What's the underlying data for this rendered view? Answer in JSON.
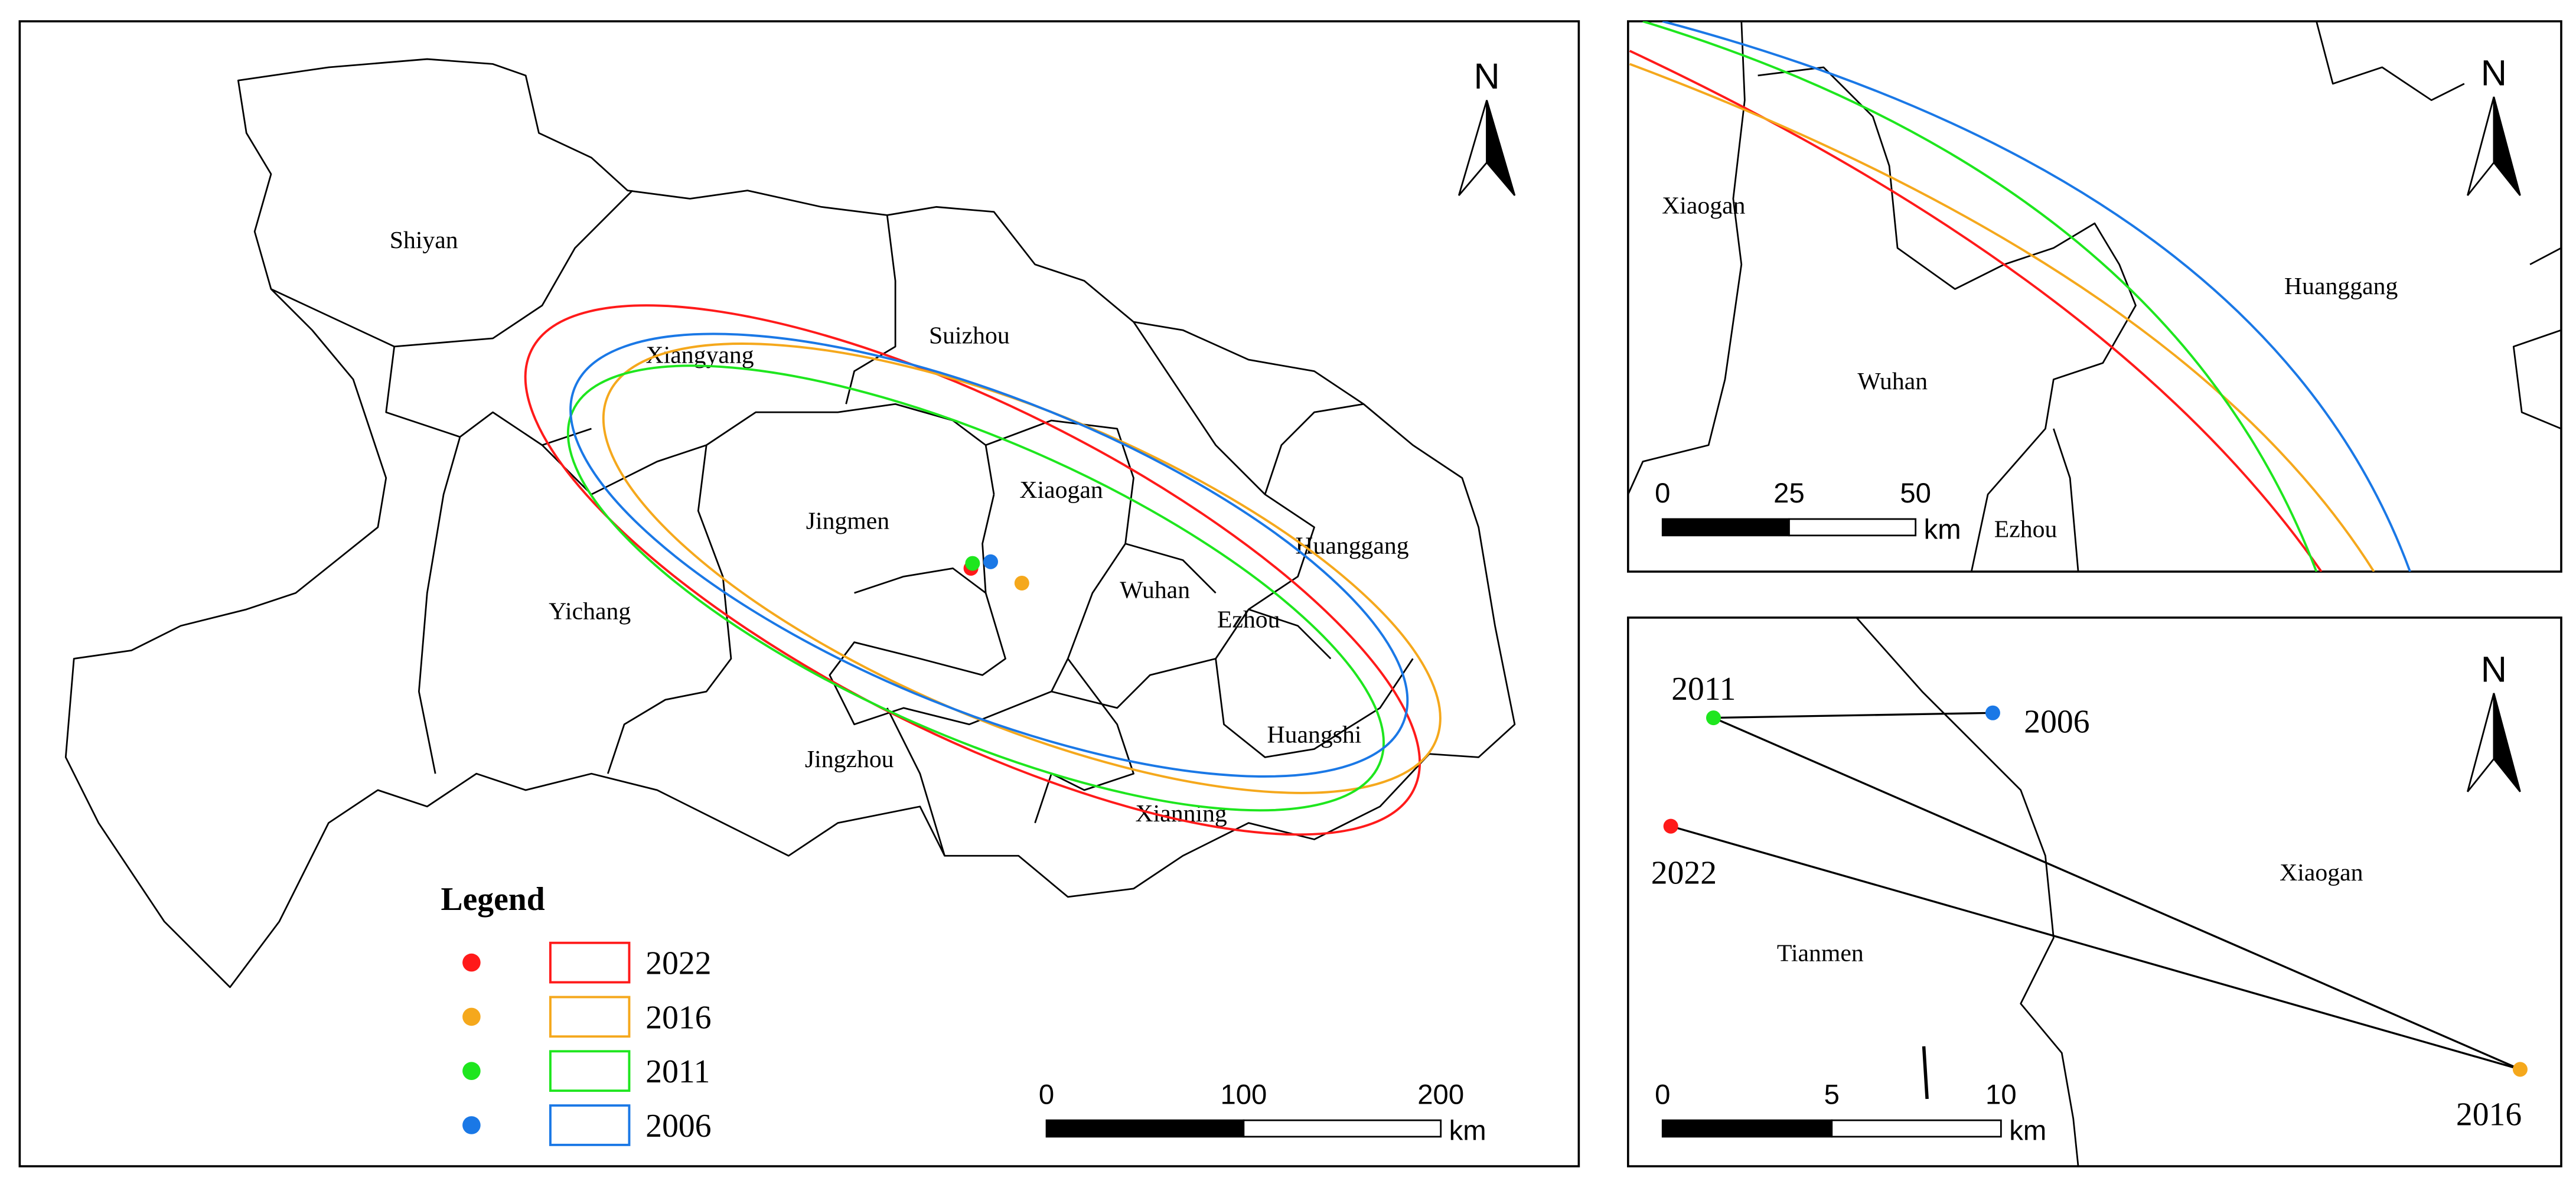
{
  "main_map": {
    "north": "N",
    "regions": [
      "Shiyan",
      "Xiangyang",
      "Suizhou",
      "Xiaogan",
      "Jingmen",
      "Wuhan",
      "Huanggang",
      "Ezhou",
      "Yichang",
      "Huangshi",
      "Jingzhou",
      "Xianning"
    ],
    "legend": {
      "title": "Legend",
      "years": [
        {
          "name": "2022",
          "color": "#ff1a1a"
        },
        {
          "name": "2016",
          "color": "#f5a81c"
        },
        {
          "name": "2011",
          "color": "#1ee61e"
        },
        {
          "name": "2006",
          "color": "#1a78e6"
        }
      ]
    },
    "scale_bar": {
      "ticks": [
        0,
        100,
        200
      ],
      "unit": "km"
    }
  },
  "inset_top": {
    "north": "N",
    "regions": [
      "Xiaogan",
      "Wuhan",
      "Huanggang",
      "Ezhou"
    ],
    "scale_bar": {
      "ticks": [
        0,
        25,
        50
      ],
      "unit": "km"
    }
  },
  "inset_bottom": {
    "north": "N",
    "regions": [
      "Xiaogan",
      "Tianmen"
    ],
    "points": [
      "2022",
      "2016",
      "2011",
      "2006"
    ],
    "scale_bar": {
      "ticks": [
        0,
        5,
        10
      ],
      "unit": "km"
    }
  }
}
